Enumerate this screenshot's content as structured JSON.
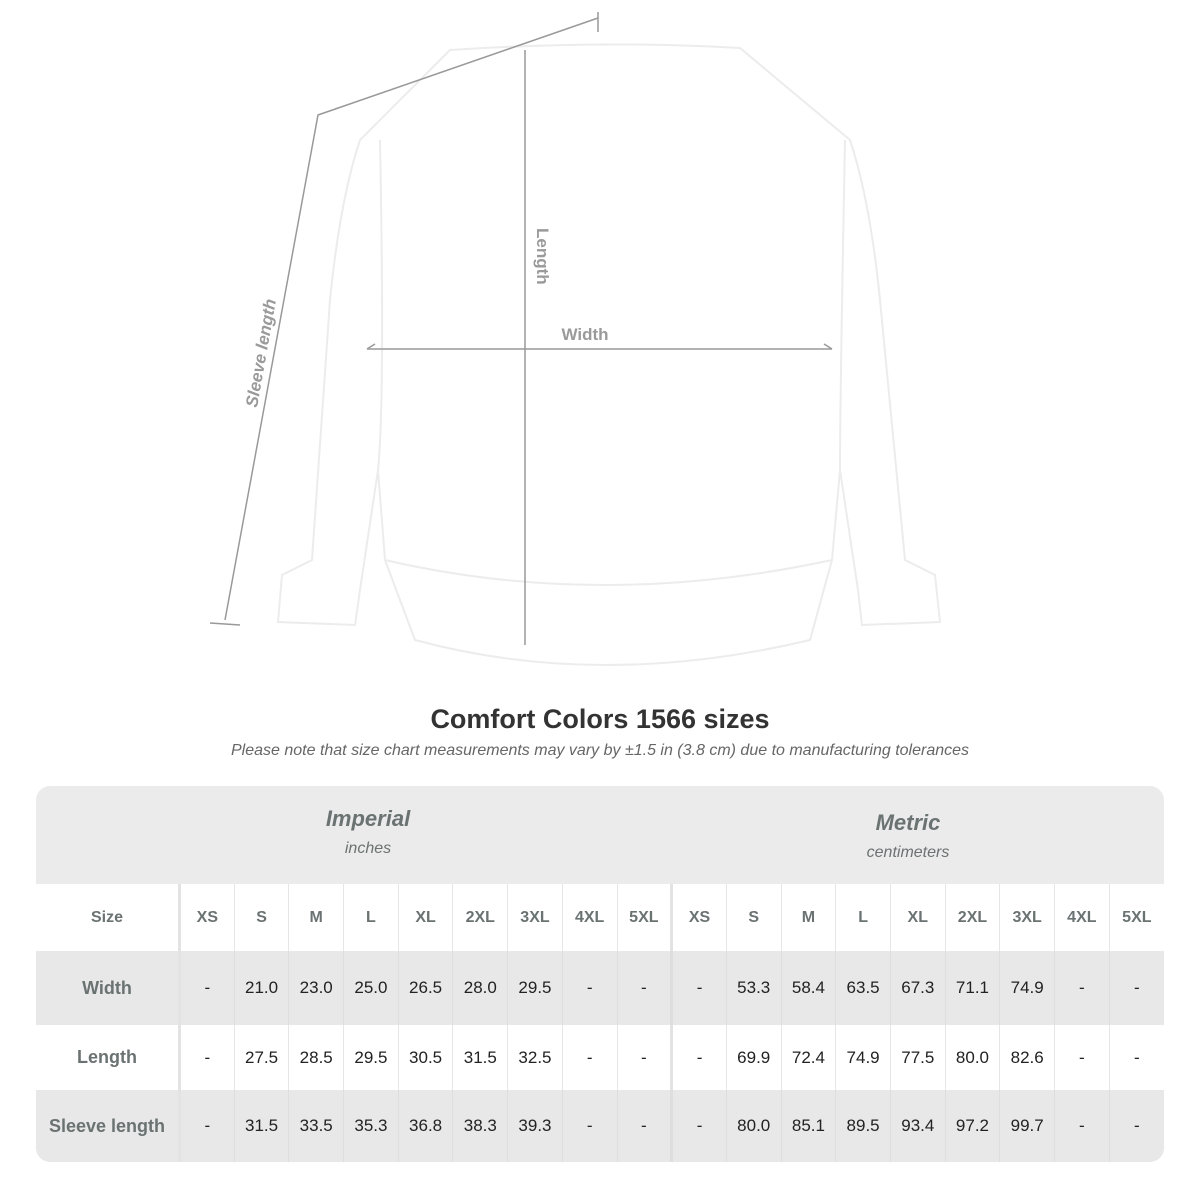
{
  "diagram": {
    "length_label": "Length",
    "width_label": "Width",
    "sleeve_label": "Sleeve length",
    "garment_color": "#ffffff"
  },
  "title": "Comfort Colors 1566 sizes",
  "note": "Please note that size chart measurements may vary by ±1.5 in (3.8 cm) due to manufacturing tolerances",
  "imperial": {
    "name": "Imperial",
    "unit": "inches"
  },
  "metric": {
    "name": "Metric",
    "unit": "centimeters"
  },
  "size_label": "Size",
  "sizes": [
    "XS",
    "S",
    "M",
    "L",
    "XL",
    "2XL",
    "3XL",
    "4XL",
    "5XL"
  ],
  "rows": [
    {
      "label": "Width",
      "imperial": [
        "-",
        "21.0",
        "23.0",
        "25.0",
        "26.5",
        "28.0",
        "29.5",
        "-",
        "-"
      ],
      "metric": [
        "-",
        "53.3",
        "58.4",
        "63.5",
        "67.3",
        "71.1",
        "74.9",
        "-",
        "-"
      ]
    },
    {
      "label": "Length",
      "imperial": [
        "-",
        "27.5",
        "28.5",
        "29.5",
        "30.5",
        "31.5",
        "32.5",
        "-",
        "-"
      ],
      "metric": [
        "-",
        "69.9",
        "72.4",
        "74.9",
        "77.5",
        "80.0",
        "82.6",
        "-",
        "-"
      ]
    },
    {
      "label": "Sleeve length",
      "imperial": [
        "-",
        "31.5",
        "33.5",
        "35.3",
        "36.8",
        "38.3",
        "39.3",
        "-",
        "-"
      ],
      "metric": [
        "-",
        "80.0",
        "85.1",
        "89.5",
        "93.4",
        "97.2",
        "99.7",
        "-",
        "-"
      ]
    }
  ]
}
